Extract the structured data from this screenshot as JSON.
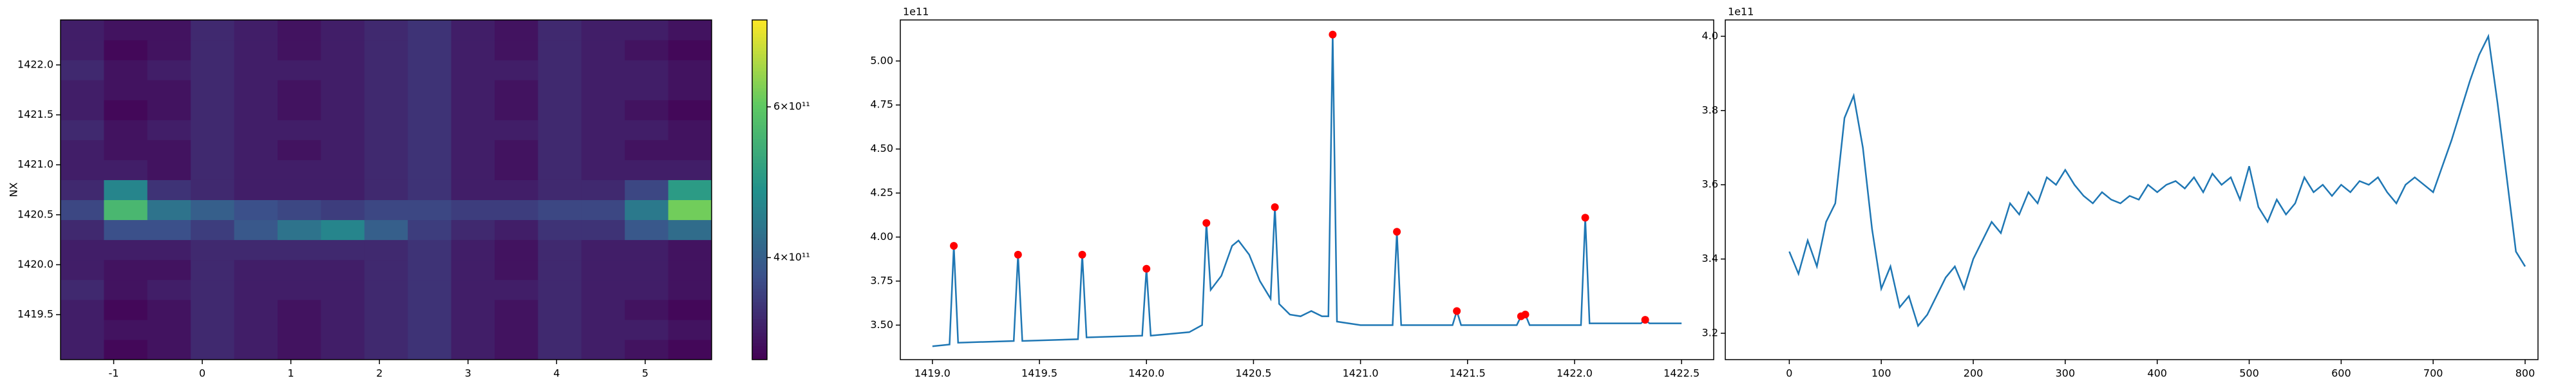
{
  "chart_data": [
    {
      "type": "heatmap",
      "ylabel": "NX",
      "colormap": "viridis",
      "color_log_scale": true,
      "x_edges": [
        -1.6,
        -1.11,
        -0.62,
        -0.13,
        0.36,
        0.85,
        1.34,
        1.83,
        2.32,
        2.81,
        3.3,
        3.79,
        4.28,
        4.77,
        5.26,
        5.75
      ],
      "y_edges": [
        1419.05,
        1419.25,
        1419.45,
        1419.65,
        1419.85,
        1420.05,
        1420.25,
        1420.45,
        1420.65,
        1420.85,
        1421.05,
        1421.25,
        1421.45,
        1421.65,
        1421.85,
        1422.05,
        1422.25,
        1422.45
      ],
      "z": [
        [
          330000000000.0,
          310000000000.0,
          320000000000.0,
          340000000000.0,
          330000000000.0,
          320000000000.0,
          330000000000.0,
          340000000000.0,
          350000000000.0,
          330000000000.0,
          320000000000.0,
          340000000000.0,
          330000000000.0,
          320000000000.0,
          310000000000.0
        ],
        [
          330000000000.0,
          320000000000.0,
          320000000000.0,
          340000000000.0,
          330000000000.0,
          320000000000.0,
          330000000000.0,
          340000000000.0,
          350000000000.0,
          330000000000.0,
          320000000000.0,
          340000000000.0,
          330000000000.0,
          330000000000.0,
          320000000000.0
        ],
        [
          330000000000.0,
          310000000000.0,
          320000000000.0,
          340000000000.0,
          330000000000.0,
          320000000000.0,
          330000000000.0,
          340000000000.0,
          350000000000.0,
          330000000000.0,
          320000000000.0,
          340000000000.0,
          330000000000.0,
          320000000000.0,
          310000000000.0
        ],
        [
          340000000000.0,
          320000000000.0,
          330000000000.0,
          340000000000.0,
          330000000000.0,
          330000000000.0,
          330000000000.0,
          340000000000.0,
          350000000000.0,
          330000000000.0,
          330000000000.0,
          340000000000.0,
          330000000000.0,
          330000000000.0,
          320000000000.0
        ],
        [
          330000000000.0,
          320000000000.0,
          320000000000.0,
          340000000000.0,
          330000000000.0,
          330000000000.0,
          330000000000.0,
          340000000000.0,
          350000000000.0,
          330000000000.0,
          320000000000.0,
          340000000000.0,
          330000000000.0,
          330000000000.0,
          320000000000.0
        ],
        [
          330000000000.0,
          330000000000.0,
          330000000000.0,
          340000000000.0,
          340000000000.0,
          340000000000.0,
          340000000000.0,
          340000000000.0,
          350000000000.0,
          330000000000.0,
          320000000000.0,
          340000000000.0,
          330000000000.0,
          330000000000.0,
          320000000000.0
        ],
        [
          340000000000.0,
          380000000000.0,
          380000000000.0,
          360000000000.0,
          390000000000.0,
          430000000000.0,
          460000000000.0,
          400000000000.0,
          360000000000.0,
          340000000000.0,
          330000000000.0,
          350000000000.0,
          350000000000.0,
          390000000000.0,
          420000000000.0
        ],
        [
          370000000000.0,
          560000000000.0,
          430000000000.0,
          400000000000.0,
          380000000000.0,
          370000000000.0,
          360000000000.0,
          370000000000.0,
          370000000000.0,
          360000000000.0,
          360000000000.0,
          370000000000.0,
          370000000000.0,
          440000000000.0,
          620000000000.0
        ],
        [
          340000000000.0,
          460000000000.0,
          350000000000.0,
          340000000000.0,
          330000000000.0,
          330000000000.0,
          330000000000.0,
          340000000000.0,
          350000000000.0,
          330000000000.0,
          330000000000.0,
          340000000000.0,
          340000000000.0,
          370000000000.0,
          500000000000.0
        ],
        [
          330000000000.0,
          330000000000.0,
          320000000000.0,
          340000000000.0,
          330000000000.0,
          330000000000.0,
          330000000000.0,
          340000000000.0,
          350000000000.0,
          330000000000.0,
          320000000000.0,
          340000000000.0,
          330000000000.0,
          330000000000.0,
          330000000000.0
        ],
        [
          330000000000.0,
          320000000000.0,
          320000000000.0,
          340000000000.0,
          330000000000.0,
          320000000000.0,
          330000000000.0,
          340000000000.0,
          350000000000.0,
          330000000000.0,
          320000000000.0,
          340000000000.0,
          330000000000.0,
          320000000000.0,
          320000000000.0
        ],
        [
          340000000000.0,
          320000000000.0,
          330000000000.0,
          340000000000.0,
          330000000000.0,
          330000000000.0,
          330000000000.0,
          340000000000.0,
          350000000000.0,
          330000000000.0,
          330000000000.0,
          340000000000.0,
          330000000000.0,
          330000000000.0,
          320000000000.0
        ],
        [
          330000000000.0,
          310000000000.0,
          320000000000.0,
          340000000000.0,
          330000000000.0,
          320000000000.0,
          330000000000.0,
          340000000000.0,
          350000000000.0,
          330000000000.0,
          320000000000.0,
          340000000000.0,
          330000000000.0,
          320000000000.0,
          310000000000.0
        ],
        [
          330000000000.0,
          320000000000.0,
          320000000000.0,
          340000000000.0,
          330000000000.0,
          320000000000.0,
          330000000000.0,
          340000000000.0,
          350000000000.0,
          330000000000.0,
          320000000000.0,
          340000000000.0,
          330000000000.0,
          330000000000.0,
          320000000000.0
        ],
        [
          340000000000.0,
          320000000000.0,
          330000000000.0,
          340000000000.0,
          330000000000.0,
          330000000000.0,
          330000000000.0,
          340000000000.0,
          350000000000.0,
          330000000000.0,
          330000000000.0,
          340000000000.0,
          330000000000.0,
          330000000000.0,
          320000000000.0
        ],
        [
          330000000000.0,
          310000000000.0,
          320000000000.0,
          340000000000.0,
          330000000000.0,
          320000000000.0,
          330000000000.0,
          340000000000.0,
          350000000000.0,
          330000000000.0,
          320000000000.0,
          340000000000.0,
          330000000000.0,
          320000000000.0,
          310000000000.0
        ],
        [
          330000000000.0,
          320000000000.0,
          320000000000.0,
          340000000000.0,
          330000000000.0,
          320000000000.0,
          330000000000.0,
          340000000000.0,
          350000000000.0,
          330000000000.0,
          320000000000.0,
          340000000000.0,
          330000000000.0,
          330000000000.0,
          320000000000.0
        ]
      ],
      "xlim": [
        -1.6,
        5.75
      ],
      "xticks": [
        -1,
        0,
        1,
        2,
        3,
        4,
        5
      ],
      "ylim": [
        1419.05,
        1422.45
      ],
      "yticks": [
        1419.5,
        {
          "value": 1420.0,
          "label": "1420.0"
        },
        1420.5,
        {
          "value": 1421.0,
          "label": "1421.0"
        },
        1421.5,
        {
          "value": 1422.0,
          "label": "1422.0"
        }
      ],
      "clim": [
        304000000000.0,
        758000000000.0
      ],
      "cticks": [
        {
          "value": 400000000000.0,
          "label": "4×10¹¹"
        },
        {
          "value": 600000000000.0,
          "label": "6×10¹¹"
        }
      ]
    },
    {
      "type": "line",
      "color": "#1f77b4",
      "offset_text": "1e11",
      "x": [
        1419.0,
        1419.08,
        1419.1,
        1419.12,
        1419.38,
        1419.4,
        1419.42,
        1419.68,
        1419.7,
        1419.72,
        1419.98,
        1420.0,
        1420.02,
        1420.2,
        1420.26,
        1420.28,
        1420.3,
        1420.35,
        1420.4,
        1420.43,
        1420.48,
        1420.53,
        1420.58,
        1420.6,
        1420.62,
        1420.67,
        1420.72,
        1420.77,
        1420.82,
        1420.85,
        1420.87,
        1420.89,
        1421.0,
        1421.15,
        1421.17,
        1421.19,
        1421.43,
        1421.45,
        1421.47,
        1421.73,
        1421.75,
        1421.77,
        1421.79,
        1422.03,
        1422.05,
        1422.07,
        1422.31,
        1422.33,
        1422.35,
        1422.5
      ],
      "values": [
        3.38,
        3.39,
        3.95,
        3.4,
        3.41,
        3.9,
        3.41,
        3.42,
        3.9,
        3.43,
        3.44,
        3.82,
        3.44,
        3.46,
        3.5,
        4.08,
        3.7,
        3.78,
        3.95,
        3.98,
        3.9,
        3.75,
        3.65,
        4.17,
        3.62,
        3.56,
        3.55,
        3.58,
        3.55,
        3.55,
        5.15,
        3.52,
        3.5,
        3.5,
        4.03,
        3.5,
        3.5,
        3.58,
        3.5,
        3.5,
        3.55,
        3.56,
        3.5,
        3.5,
        4.11,
        3.51,
        3.51,
        3.53,
        3.51,
        3.51
      ],
      "peaks": {
        "color": "red",
        "x": [
          1419.1,
          1419.4,
          1419.7,
          1420.0,
          1420.28,
          1420.6,
          1420.87,
          1421.17,
          1421.45,
          1421.75,
          1421.77,
          1422.05,
          1422.33
        ],
        "values": [
          3.95,
          3.9,
          3.9,
          3.82,
          4.08,
          4.17,
          5.15,
          4.03,
          3.58,
          3.55,
          3.56,
          4.11,
          3.53
        ]
      },
      "xlim": [
        1418.85,
        1422.65
      ],
      "xticks": [
        {
          "value": 1419.0,
          "label": "1419.0"
        },
        1419.5,
        {
          "value": 1420.0,
          "label": "1420.0"
        },
        1420.5,
        {
          "value": 1421.0,
          "label": "1421.0"
        },
        1421.5,
        {
          "value": 1422.0,
          "label": "1422.0"
        },
        1422.5
      ],
      "ylim": [
        3.304,
        5.233
      ],
      "yticks": [
        {
          "value": 3.5,
          "label": "3.50"
        },
        3.75,
        {
          "value": 4.0,
          "label": "4.00"
        },
        4.25,
        {
          "value": 4.5,
          "label": "4.50"
        },
        4.75,
        {
          "value": 5.0,
          "label": "5.00"
        }
      ]
    },
    {
      "type": "line",
      "color": "#1f77b4",
      "offset_text": "1e11",
      "x": [
        0,
        10,
        20,
        30,
        40,
        50,
        60,
        70,
        80,
        90,
        100,
        110,
        120,
        130,
        140,
        150,
        160,
        170,
        180,
        190,
        200,
        210,
        220,
        230,
        240,
        250,
        260,
        270,
        280,
        290,
        300,
        310,
        320,
        330,
        340,
        350,
        360,
        370,
        380,
        390,
        400,
        410,
        420,
        430,
        440,
        450,
        460,
        470,
        480,
        490,
        500,
        510,
        520,
        530,
        540,
        550,
        560,
        570,
        580,
        590,
        600,
        610,
        620,
        630,
        640,
        650,
        660,
        670,
        680,
        690,
        700,
        710,
        720,
        730,
        740,
        750,
        760,
        770,
        780,
        790,
        800
      ],
      "values": [
        3.42,
        3.36,
        3.45,
        3.38,
        3.5,
        3.55,
        3.78,
        3.84,
        3.7,
        3.48,
        3.32,
        3.38,
        3.27,
        3.3,
        3.22,
        3.25,
        3.3,
        3.35,
        3.38,
        3.32,
        3.4,
        3.45,
        3.5,
        3.47,
        3.55,
        3.52,
        3.58,
        3.55,
        3.62,
        3.6,
        3.64,
        3.6,
        3.57,
        3.55,
        3.58,
        3.56,
        3.55,
        3.57,
        3.56,
        3.6,
        3.58,
        3.6,
        3.61,
        3.59,
        3.62,
        3.58,
        3.63,
        3.6,
        3.62,
        3.56,
        3.65,
        3.54,
        3.5,
        3.56,
        3.52,
        3.55,
        3.62,
        3.58,
        3.6,
        3.57,
        3.6,
        3.58,
        3.61,
        3.6,
        3.62,
        3.58,
        3.55,
        3.6,
        3.62,
        3.6,
        3.58,
        3.65,
        3.72,
        3.8,
        3.88,
        3.95,
        4.0,
        3.82,
        3.62,
        3.42,
        3.38
      ],
      "xlim": [
        -69.6,
        814
      ],
      "xticks": [
        0,
        100,
        200,
        300,
        400,
        500,
        600,
        700,
        800
      ],
      "ylim": [
        3.129,
        4.044
      ],
      "yticks": [
        3.2,
        3.4,
        3.6,
        3.8,
        {
          "value": 4.0,
          "label": "4.0"
        }
      ]
    }
  ]
}
